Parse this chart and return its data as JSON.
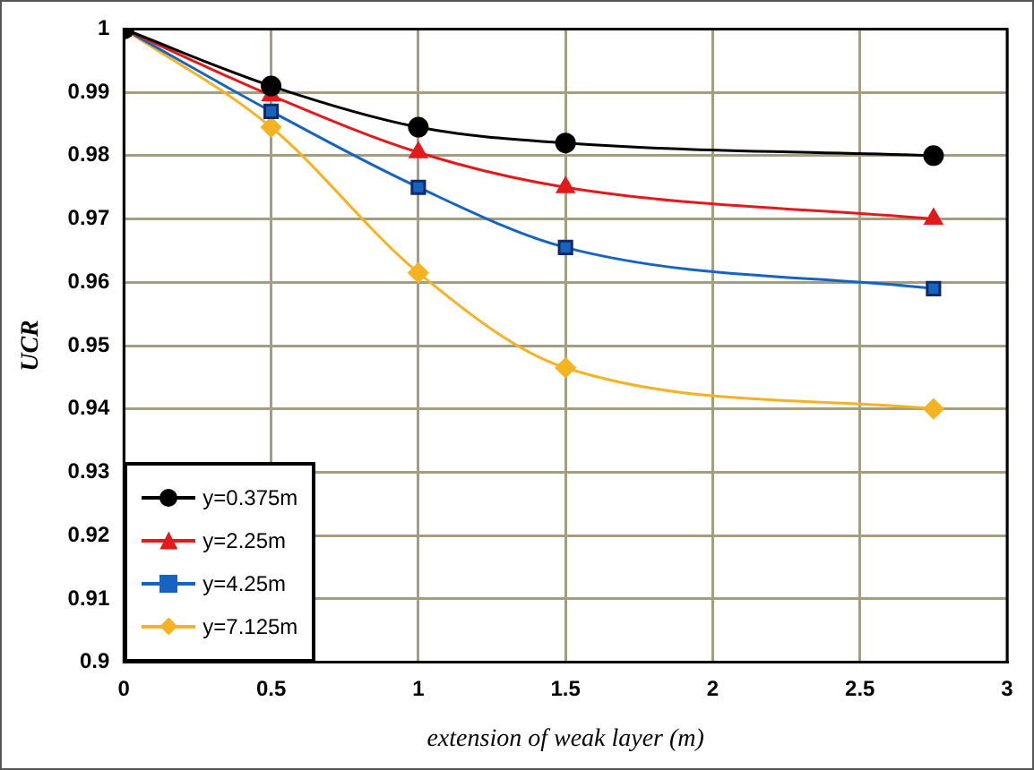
{
  "chart_data": {
    "type": "line",
    "xlabel": "extension of weak layer (m)",
    "ylabel": "UCR",
    "x": [
      0,
      0.5,
      1,
      1.5,
      2.75
    ],
    "series": [
      {
        "name": "y=0.375m",
        "color": "#000000",
        "marker": "circle",
        "values": [
          1,
          0.991,
          0.9845,
          0.982,
          0.98
        ]
      },
      {
        "name": "y=2.25m",
        "color": "#e31a1c",
        "marker": "triangle",
        "values": [
          1,
          0.9895,
          0.9805,
          0.975,
          0.97
        ]
      },
      {
        "name": "y=4.25m",
        "color": "#1565c0",
        "marker": "square",
        "values": [
          1,
          0.987,
          0.975,
          0.9655,
          0.959
        ]
      },
      {
        "name": "y=7.125m",
        "color": "#f5b324",
        "marker": "diamond",
        "values": [
          1,
          0.9845,
          0.9615,
          0.9465,
          0.94
        ]
      }
    ],
    "xlim": [
      0,
      3
    ],
    "xticks": [
      0,
      0.5,
      1,
      1.5,
      2,
      2.5,
      3
    ],
    "ylim": [
      0.9,
      1
    ],
    "yticks": [
      0.9,
      0.91,
      0.92,
      0.93,
      0.94,
      0.95,
      0.96,
      0.97,
      0.98,
      0.99,
      1
    ],
    "grid": true,
    "legend": "bottom left"
  }
}
